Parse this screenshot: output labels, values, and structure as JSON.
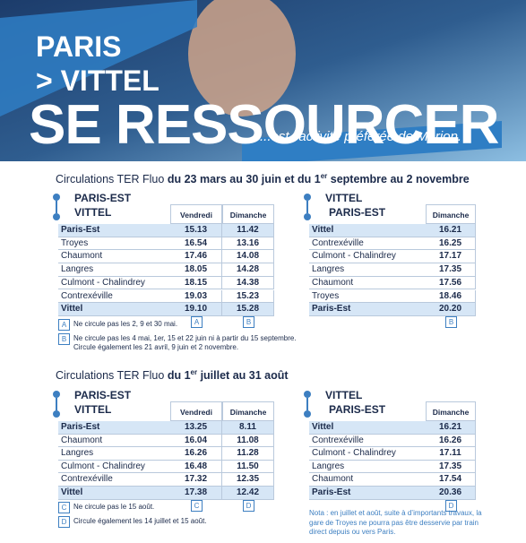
{
  "header": {
    "line1": "PARIS",
    "line2": "> VITTEL",
    "headline": "SE RESSOURCER",
    "tagline": "...est l’activité préférée de Marion."
  },
  "sections": [
    {
      "title": {
        "prefix": "Circulations TER Fluo",
        "bold": "du 23 mars au 30 juin et du 1",
        "sup": "er",
        "rest": "septembre au 2 novembre"
      },
      "tables": [
        {
          "route": [
            "PARIS-EST",
            "VITTEL"
          ],
          "columns": [
            "Vendredi",
            "Dimanche"
          ],
          "rows": [
            [
              "Paris-Est",
              "15.13",
              "11.42"
            ],
            [
              "Troyes",
              "16.54",
              "13.16"
            ],
            [
              "Chaumont",
              "17.46",
              "14.08"
            ],
            [
              "Langres",
              "18.05",
              "14.28"
            ],
            [
              "Culmont - Chalindrey",
              "18.15",
              "14.38"
            ],
            [
              "Contrexéville",
              "19.03",
              "15.23"
            ],
            [
              "Vittel",
              "19.10",
              "15.28"
            ]
          ],
          "codes": [
            "A",
            "B"
          ]
        },
        {
          "route": [
            "VITTEL",
            "PARIS-EST"
          ],
          "columns": [
            "Dimanche"
          ],
          "rows": [
            [
              "Vittel",
              "16.21"
            ],
            [
              "Contrexéville",
              "16.25"
            ],
            [
              "Culmont - Chalindrey",
              "17.17"
            ],
            [
              "Langres",
              "17.35"
            ],
            [
              "Chaumont",
              "17.56"
            ],
            [
              "Troyes",
              "18.46"
            ],
            [
              "Paris-Est",
              "20.20"
            ]
          ],
          "codes": [
            "B"
          ]
        }
      ],
      "footnotes": [
        {
          "code": "A",
          "text": "Ne circule pas les 2, 9 et 30 mai."
        },
        {
          "code": "B",
          "text": "Ne circule pas les 4 mai, 1er, 15 et 22 juin ni à partir du 15 septembre. Circule également les 21 avril, 9 juin et 2 novembre."
        }
      ]
    },
    {
      "title": {
        "prefix": "Circulations TER Fluo",
        "bold": "du 1",
        "sup": "er",
        "rest": "juillet au 31 août"
      },
      "tables": [
        {
          "route": [
            "PARIS-EST",
            "VITTEL"
          ],
          "columns": [
            "Vendredi",
            "Dimanche"
          ],
          "rows": [
            [
              "Paris-Est",
              "13.25",
              "8.11"
            ],
            [
              "Chaumont",
              "16.04",
              "11.08"
            ],
            [
              "Langres",
              "16.26",
              "11.28"
            ],
            [
              "Culmont - Chalindrey",
              "16.48",
              "11.50"
            ],
            [
              "Contrexéville",
              "17.32",
              "12.35"
            ],
            [
              "Vittel",
              "17.38",
              "12.42"
            ]
          ],
          "codes": [
            "C",
            "D"
          ]
        },
        {
          "route": [
            "VITTEL",
            "PARIS-EST"
          ],
          "columns": [
            "Dimanche"
          ],
          "rows": [
            [
              "Vittel",
              "16.21"
            ],
            [
              "Contrexéville",
              "16.26"
            ],
            [
              "Culmont - Chalindrey",
              "17.11"
            ],
            [
              "Langres",
              "17.35"
            ],
            [
              "Chaumont",
              "17.54"
            ],
            [
              "Paris-Est",
              "20.36"
            ]
          ],
          "codes": [
            "D"
          ]
        }
      ],
      "footnotes": [
        {
          "code": "C",
          "text": "Ne circule pas le 15 août."
        },
        {
          "code": "D",
          "text": "Circule également les 14 juillet et 15 août."
        }
      ],
      "note": "Nota : en juillet et août, suite à d’importants travaux, la gare de Troyes ne pourra pas être desservie par train direct depuis ou vers Paris."
    }
  ]
}
